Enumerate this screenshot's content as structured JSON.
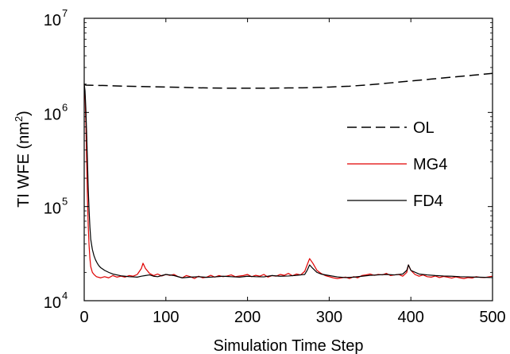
{
  "chart_data": {
    "type": "line",
    "xlabel": "Simulation Time Step",
    "ylabel": "TI WFE (nm",
    "ylabel_sup": "2",
    "ylabel_close": ")",
    "xlim": [
      0,
      500
    ],
    "ylim": [
      10000,
      10000000
    ],
    "yscale": "log",
    "xticks": [
      0,
      100,
      200,
      300,
      400,
      500
    ],
    "xtick_labels": [
      "0",
      "100",
      "200",
      "300",
      "400",
      "500"
    ],
    "yticks": [
      10000,
      100000,
      1000000,
      10000000
    ],
    "ytick_base": "10",
    "ytick_exponents": [
      "4",
      "5",
      "6",
      "7"
    ],
    "grid": false,
    "legend_position": "right",
    "series": [
      {
        "name": "OL",
        "color": "#000000",
        "style": "dashed",
        "x": [
          0,
          2,
          25,
          50,
          75,
          100,
          125,
          150,
          175,
          200,
          225,
          250,
          275,
          300,
          325,
          350,
          375,
          400,
          425,
          450,
          475,
          500
        ],
        "y": [
          2000000,
          1950000,
          1930000,
          1900000,
          1880000,
          1860000,
          1840000,
          1820000,
          1810000,
          1810000,
          1810000,
          1820000,
          1830000,
          1860000,
          1900000,
          1970000,
          2060000,
          2160000,
          2260000,
          2370000,
          2480000,
          2600000
        ]
      },
      {
        "name": "MG4",
        "color": "#e00000",
        "style": "solid",
        "x": [
          0,
          1,
          2,
          3,
          4,
          5,
          6,
          7,
          8,
          10,
          12,
          15,
          20,
          25,
          30,
          35,
          40,
          45,
          50,
          55,
          60,
          65,
          70,
          72,
          75,
          80,
          85,
          90,
          95,
          100,
          105,
          110,
          115,
          120,
          125,
          130,
          135,
          140,
          145,
          150,
          155,
          160,
          165,
          170,
          175,
          180,
          185,
          190,
          195,
          200,
          205,
          210,
          215,
          220,
          225,
          230,
          235,
          240,
          245,
          250,
          255,
          260,
          265,
          270,
          273,
          276,
          280,
          285,
          290,
          295,
          300,
          305,
          310,
          315,
          320,
          325,
          330,
          335,
          340,
          345,
          350,
          355,
          360,
          365,
          370,
          375,
          380,
          385,
          390,
          395,
          397,
          400,
          405,
          410,
          415,
          420,
          425,
          430,
          435,
          440,
          445,
          450,
          455,
          460,
          465,
          470,
          475,
          480,
          485,
          490,
          495,
          500
        ],
        "y": [
          2000000,
          1500000,
          800000,
          300000,
          120000,
          60000,
          38000,
          28000,
          23000,
          20000,
          19000,
          18000,
          17500,
          18000,
          17500,
          18500,
          17800,
          18200,
          17800,
          18500,
          18200,
          19000,
          22000,
          25000,
          22000,
          19500,
          18500,
          19200,
          18300,
          19000,
          18600,
          19000,
          18000,
          17500,
          18500,
          18000,
          17200,
          18200,
          17500,
          17800,
          18600,
          17800,
          18500,
          18000,
          18300,
          18800,
          18000,
          18300,
          18500,
          19000,
          18000,
          18600,
          18200,
          19000,
          17800,
          18500,
          18200,
          19000,
          18600,
          19500,
          18400,
          19200,
          18800,
          20500,
          24000,
          28000,
          25000,
          21000,
          19500,
          18500,
          18000,
          17500,
          17200,
          17500,
          17800,
          17200,
          18000,
          17500,
          18500,
          18800,
          19200,
          18600,
          19000,
          18800,
          19500,
          18500,
          18800,
          19000,
          18200,
          20000,
          24000,
          21000,
          19000,
          18200,
          18800,
          18000,
          17800,
          18300,
          17600,
          18100,
          17800,
          17400,
          17900,
          17500,
          17200,
          17600,
          17400,
          18000,
          17700,
          17600,
          17900,
          18200
        ]
      },
      {
        "name": "FD4",
        "color": "#000000",
        "style": "solid",
        "x": [
          0,
          1,
          2,
          3,
          4,
          5,
          6,
          7,
          8,
          10,
          12,
          14,
          16,
          18,
          20,
          25,
          30,
          35,
          40,
          45,
          50,
          55,
          60,
          65,
          70,
          75,
          80,
          85,
          90,
          95,
          100,
          110,
          120,
          130,
          140,
          150,
          160,
          170,
          180,
          190,
          200,
          210,
          220,
          230,
          240,
          250,
          260,
          270,
          273,
          276,
          280,
          285,
          290,
          300,
          310,
          320,
          330,
          340,
          350,
          360,
          370,
          380,
          390,
          395,
          397,
          400,
          410,
          420,
          430,
          440,
          450,
          460,
          470,
          480,
          490,
          500
        ],
        "y": [
          2000000,
          1700000,
          1100000,
          600000,
          300000,
          150000,
          90000,
          60000,
          45000,
          35000,
          30000,
          27000,
          25000,
          23500,
          22500,
          21000,
          20000,
          19200,
          18800,
          18400,
          18200,
          18000,
          17900,
          17800,
          18200,
          18500,
          18800,
          18200,
          18000,
          18500,
          19000,
          18500,
          17500,
          17800,
          18000,
          17700,
          17900,
          18200,
          18000,
          17800,
          18200,
          18000,
          17900,
          18500,
          18200,
          18300,
          18600,
          19000,
          21000,
          24000,
          22000,
          20000,
          19200,
          18500,
          17900,
          17600,
          17800,
          18200,
          18600,
          18800,
          19000,
          18800,
          19200,
          21000,
          24000,
          21000,
          19200,
          18800,
          18500,
          18300,
          18200,
          18000,
          17900,
          17800,
          17700,
          17600
        ]
      }
    ]
  }
}
